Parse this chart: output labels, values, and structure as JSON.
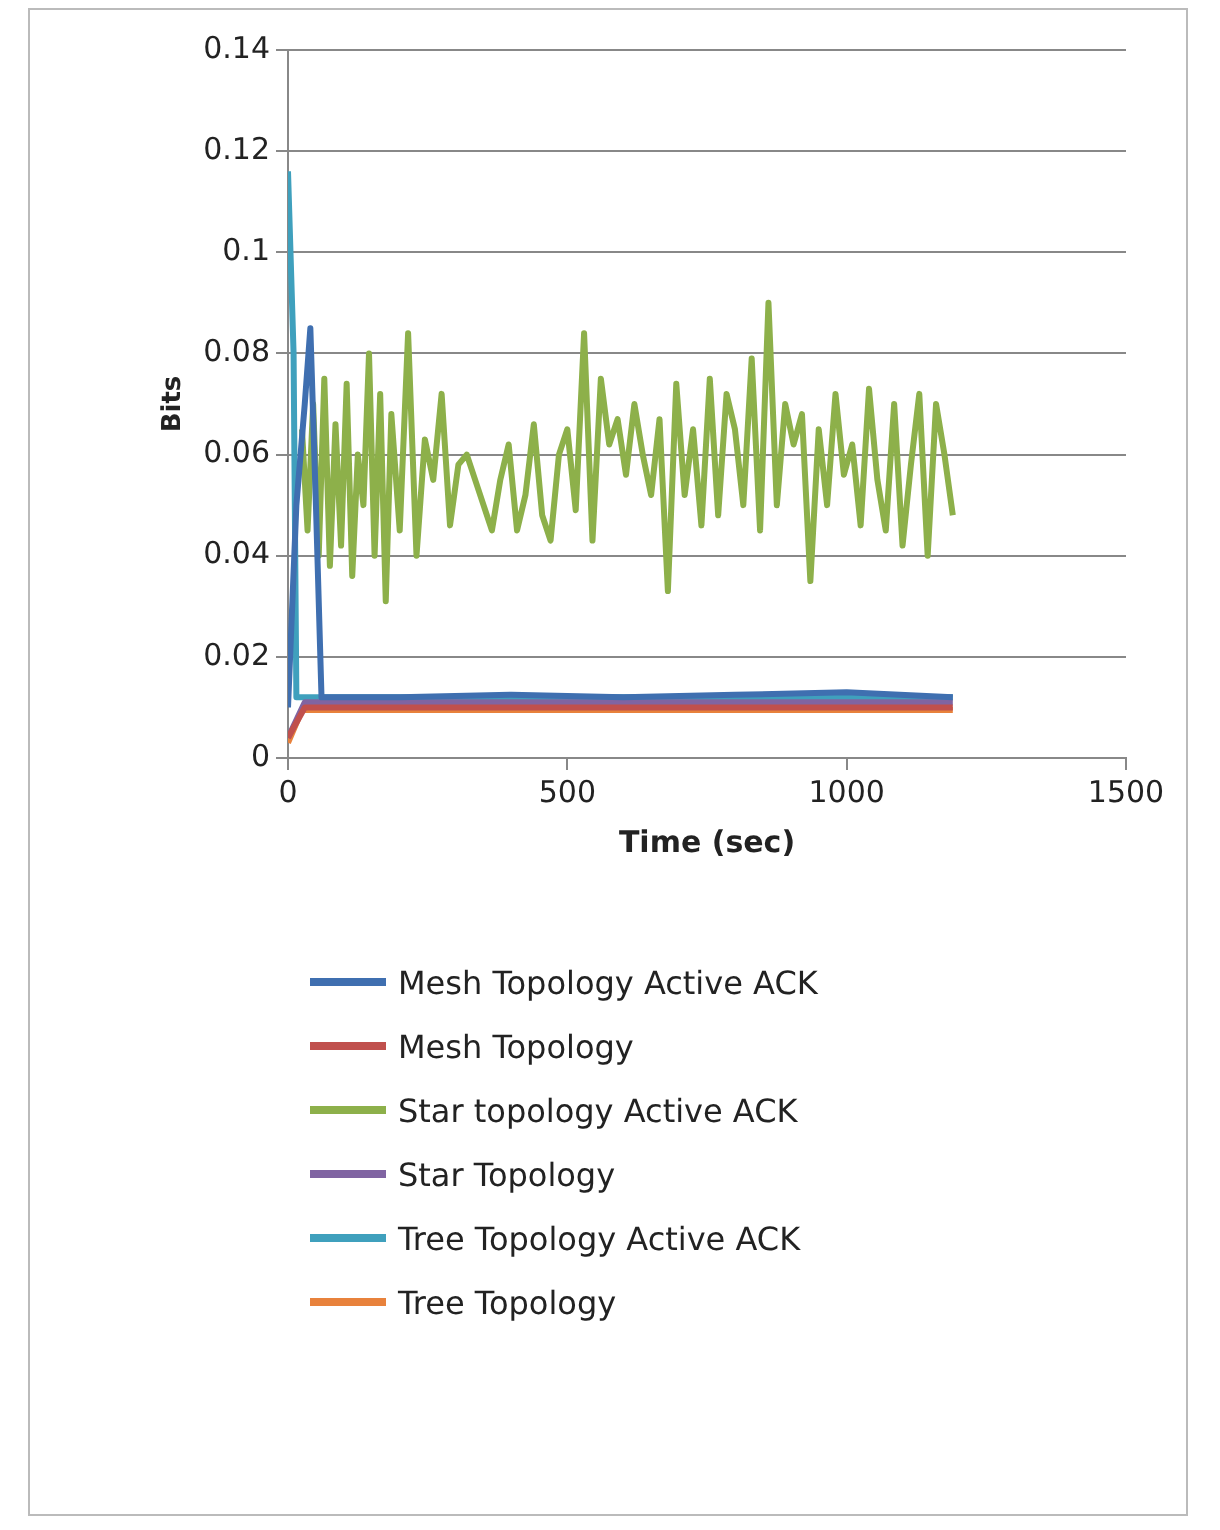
{
  "chart_data": {
    "type": "line",
    "xlabel": "Time (sec)",
    "ylabel": "Bits",
    "xlim": [
      0,
      1500
    ],
    "xticks": [
      0,
      500,
      1000,
      1500
    ],
    "ylim": [
      0,
      0.14
    ],
    "yticks": [
      0,
      0.02,
      0.04,
      0.06,
      0.08,
      0.1,
      0.12,
      0.14
    ],
    "grid": "y",
    "legend": "bottom",
    "marker": "none",
    "line_style": "solid",
    "series": [
      {
        "name": "Mesh Topology Active ACK",
        "color": "#3f6fb0",
        "x": [
          0,
          15,
          30,
          40,
          50,
          60,
          200,
          400,
          600,
          800,
          1000,
          1190
        ],
        "values": [
          0.01,
          0.05,
          0.07,
          0.085,
          0.05,
          0.012,
          0.012,
          0.0125,
          0.012,
          0.0125,
          0.013,
          0.012
        ]
      },
      {
        "name": "Mesh Topology",
        "color": "#c0504d",
        "x": [
          0,
          30,
          1190
        ],
        "values": [
          0.004,
          0.01,
          0.01
        ]
      },
      {
        "name": "Star topology Active ACK",
        "color": "#8db04a",
        "x": [
          25,
          35,
          45,
          55,
          65,
          75,
          85,
          95,
          105,
          115,
          125,
          135,
          145,
          155,
          165,
          175,
          185,
          200,
          215,
          230,
          245,
          260,
          275,
          290,
          305,
          320,
          335,
          350,
          365,
          380,
          395,
          410,
          425,
          440,
          455,
          470,
          485,
          500,
          515,
          530,
          545,
          560,
          575,
          590,
          605,
          620,
          635,
          650,
          665,
          680,
          695,
          710,
          725,
          740,
          755,
          770,
          785,
          800,
          815,
          830,
          845,
          860,
          875,
          890,
          905,
          920,
          935,
          950,
          965,
          980,
          995,
          1010,
          1025,
          1040,
          1055,
          1070,
          1085,
          1100,
          1115,
          1130,
          1145,
          1160,
          1175,
          1190
        ],
        "values": [
          0.065,
          0.045,
          0.07,
          0.04,
          0.075,
          0.038,
          0.066,
          0.042,
          0.074,
          0.036,
          0.06,
          0.05,
          0.08,
          0.04,
          0.072,
          0.031,
          0.068,
          0.045,
          0.084,
          0.04,
          0.063,
          0.055,
          0.072,
          0.046,
          0.058,
          0.06,
          0.055,
          0.05,
          0.045,
          0.055,
          0.062,
          0.045,
          0.052,
          0.066,
          0.048,
          0.043,
          0.06,
          0.065,
          0.049,
          0.084,
          0.043,
          0.075,
          0.062,
          0.067,
          0.056,
          0.07,
          0.06,
          0.052,
          0.067,
          0.033,
          0.074,
          0.052,
          0.065,
          0.046,
          0.075,
          0.048,
          0.072,
          0.065,
          0.05,
          0.079,
          0.045,
          0.09,
          0.05,
          0.07,
          0.062,
          0.068,
          0.035,
          0.065,
          0.05,
          0.072,
          0.056,
          0.062,
          0.046,
          0.073,
          0.055,
          0.045,
          0.07,
          0.042,
          0.058,
          0.072,
          0.04,
          0.07,
          0.06,
          0.048
        ]
      },
      {
        "name": "Star Topology",
        "color": "#8064a2",
        "x": [
          0,
          30,
          1190
        ],
        "values": [
          0.004,
          0.011,
          0.011
        ]
      },
      {
        "name": "Tree Topology Active ACK",
        "color": "#3fa0bd",
        "x": [
          0,
          10,
          15,
          1190
        ],
        "values": [
          0.116,
          0.08,
          0.012,
          0.012
        ]
      },
      {
        "name": "Tree Topology",
        "color": "#e8823c",
        "x": [
          0,
          25,
          1190
        ],
        "values": [
          0.003,
          0.0095,
          0.0095
        ]
      }
    ]
  }
}
